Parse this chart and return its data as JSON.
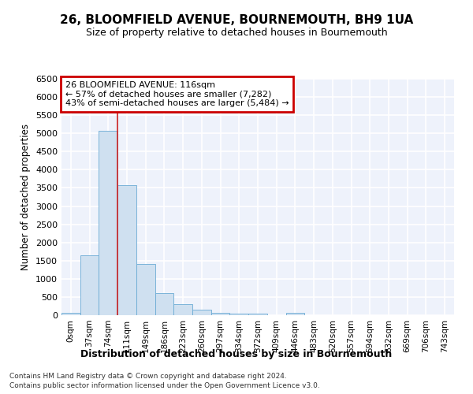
{
  "title": "26, BLOOMFIELD AVENUE, BOURNEMOUTH, BH9 1UA",
  "subtitle": "Size of property relative to detached houses in Bournemouth",
  "xlabel": "Distribution of detached houses by size in Bournemouth",
  "ylabel": "Number of detached properties",
  "bar_color": "#cfe0f0",
  "bar_edge_color": "#6aaad4",
  "background_color": "#eef2fb",
  "grid_color": "#ffffff",
  "annotation_box_edgecolor": "#cc0000",
  "vline_color": "#cc2222",
  "categories": [
    "0sqm",
    "37sqm",
    "74sqm",
    "111sqm",
    "149sqm",
    "186sqm",
    "223sqm",
    "260sqm",
    "297sqm",
    "334sqm",
    "372sqm",
    "409sqm",
    "446sqm",
    "483sqm",
    "520sqm",
    "557sqm",
    "594sqm",
    "632sqm",
    "669sqm",
    "706sqm",
    "743sqm"
  ],
  "values": [
    75,
    1640,
    5080,
    3580,
    1400,
    615,
    300,
    155,
    75,
    45,
    50,
    0,
    55,
    0,
    0,
    0,
    0,
    0,
    0,
    0,
    0
  ],
  "vline_index": 3,
  "annotation_line1": "26 BLOOMFIELD AVENUE: 116sqm",
  "annotation_line2": "← 57% of detached houses are smaller (7,282)",
  "annotation_line3": "43% of semi-detached houses are larger (5,484) →",
  "footnote1": "Contains HM Land Registry data © Crown copyright and database right 2024.",
  "footnote2": "Contains public sector information licensed under the Open Government Licence v3.0.",
  "ylim": [
    0,
    6500
  ],
  "yticks": [
    0,
    500,
    1000,
    1500,
    2000,
    2500,
    3000,
    3500,
    4000,
    4500,
    5000,
    5500,
    6000,
    6500
  ]
}
